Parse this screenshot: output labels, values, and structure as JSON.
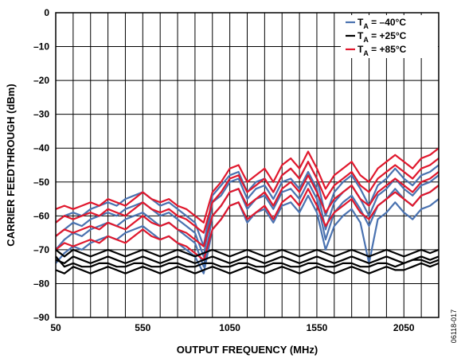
{
  "chart_data": {
    "type": "line",
    "xlabel": "OUTPUT FREQUENCY (MHz)",
    "ylabel": "CARRIER FEEDTHROUGH (dBm)",
    "xlim": [
      50,
      2250
    ],
    "ylim": [
      -90,
      0
    ],
    "x_ticks": [
      50,
      550,
      1050,
      1550,
      2050
    ],
    "x_tick_labels": [
      "50",
      "550",
      "1050",
      "1550",
      "2050"
    ],
    "y_ticks": [
      0,
      -10,
      -20,
      -30,
      -40,
      -50,
      -60,
      -70,
      -80,
      -90
    ],
    "y_tick_labels": [
      "0",
      "–10",
      "–20",
      "–30",
      "–40",
      "–50",
      "–60",
      "–70",
      "–80",
      "–90"
    ],
    "grid": true,
    "grid_x_step": 100,
    "grid_y_step": 10,
    "legend_position": "top-right",
    "figure_id": "06118-017",
    "x": [
      50,
      100,
      150,
      200,
      250,
      300,
      350,
      400,
      450,
      500,
      550,
      600,
      650,
      700,
      750,
      800,
      850,
      900,
      950,
      1000,
      1050,
      1100,
      1150,
      1200,
      1250,
      1300,
      1350,
      1400,
      1450,
      1500,
      1550,
      1600,
      1650,
      1700,
      1750,
      1800,
      1850,
      1900,
      1950,
      2000,
      2050,
      2100,
      2150,
      2200,
      2250
    ],
    "series": [
      {
        "name_prefix": "T",
        "name_sub": "A",
        "name_suffix": " = –40°C",
        "color": "#4a72b0",
        "curves": [
          [
            -66,
            -64,
            -62,
            -63,
            -61,
            -60,
            -59,
            -60,
            -58,
            -57,
            -56,
            -58,
            -60,
            -59,
            -61,
            -63,
            -65,
            -72,
            -56,
            -54,
            -50,
            -49,
            -55,
            -52,
            -51,
            -55,
            -50,
            -49,
            -52,
            -47,
            -52,
            -64,
            -56,
            -53,
            -51,
            -55,
            -60,
            -54,
            -52,
            -49,
            -52,
            -54,
            -51,
            -50,
            -48
          ],
          [
            -70,
            -67,
            -65,
            -66,
            -64,
            -63,
            -62,
            -63,
            -61,
            -60,
            -59,
            -61,
            -63,
            -62,
            -64,
            -66,
            -68,
            -75,
            -60,
            -57,
            -53,
            -52,
            -58,
            -55,
            -54,
            -58,
            -53,
            -52,
            -55,
            -50,
            -55,
            -67,
            -59,
            -56,
            -54,
            -58,
            -63,
            -57,
            -55,
            -52,
            -55,
            -57,
            -54,
            -53,
            -51
          ],
          [
            -74,
            -71,
            -69,
            -70,
            -68,
            -67,
            -66,
            -67,
            -65,
            -64,
            -63,
            -65,
            -67,
            -66,
            -68,
            -70,
            -72,
            -77,
            -64,
            -61,
            -57,
            -56,
            -62,
            -59,
            -58,
            -62,
            -57,
            -56,
            -59,
            -54,
            -59,
            -70,
            -63,
            -60,
            -58,
            -62,
            -74,
            -61,
            -59,
            -56,
            -59,
            -61,
            -58,
            -57,
            -55
          ],
          [
            -62,
            -60,
            -59,
            -60,
            -58,
            -57,
            -56,
            -57,
            -55,
            -54,
            -53,
            -55,
            -57,
            -56,
            -58,
            -60,
            -62,
            -69,
            -54,
            -51,
            -48,
            -47,
            -53,
            -50,
            -49,
            -53,
            -48,
            -46,
            -49,
            -44,
            -49,
            -60,
            -53,
            -50,
            -48,
            -52,
            -57,
            -51,
            -49,
            -46,
            -49,
            -51,
            -48,
            -47,
            -45
          ]
        ]
      },
      {
        "name_prefix": "T",
        "name_sub": "A",
        "name_suffix": " = +25°C",
        "color": "#000000",
        "curves": [
          [
            -73,
            -74,
            -72,
            -73,
            -74,
            -73,
            -72,
            -73,
            -74,
            -73,
            -72,
            -73,
            -74,
            -73,
            -72,
            -73,
            -74,
            -73,
            -72,
            -73,
            -74,
            -73,
            -72,
            -73,
            -74,
            -73,
            -72,
            -73,
            -74,
            -73,
            -72,
            -73,
            -74,
            -73,
            -72,
            -73,
            -74,
            -73,
            -72,
            -73,
            -74,
            -73,
            -72,
            -73,
            -72
          ],
          [
            -70,
            -72,
            -70,
            -71,
            -72,
            -71,
            -70,
            -71,
            -72,
            -71,
            -70,
            -71,
            -72,
            -71,
            -70,
            -71,
            -72,
            -71,
            -70,
            -71,
            -72,
            -71,
            -70,
            -71,
            -72,
            -71,
            -70,
            -71,
            -72,
            -71,
            -70,
            -71,
            -72,
            -71,
            -70,
            -71,
            -72,
            -71,
            -70,
            -71,
            -72,
            -71,
            -70,
            -71,
            -70
          ],
          [
            -76,
            -77,
            -75,
            -76,
            -77,
            -76,
            -75,
            -76,
            -77,
            -76,
            -75,
            -76,
            -77,
            -76,
            -75,
            -76,
            -77,
            -76,
            -75,
            -76,
            -77,
            -76,
            -75,
            -76,
            -77,
            -76,
            -75,
            -76,
            -77,
            -76,
            -75,
            -76,
            -77,
            -76,
            -75,
            -76,
            -77,
            -76,
            -75,
            -76,
            -76,
            -75,
            -74,
            -75,
            -74
          ],
          [
            -72,
            -75,
            -74,
            -75,
            -75,
            -74,
            -74,
            -75,
            -75,
            -74,
            -74,
            -75,
            -75,
            -74,
            -74,
            -75,
            -75,
            -74,
            -74,
            -75,
            -75,
            -74,
            -74,
            -75,
            -75,
            -74,
            -74,
            -75,
            -75,
            -74,
            -74,
            -75,
            -75,
            -74,
            -74,
            -75,
            -75,
            -74,
            -74,
            -75,
            -74,
            -73,
            -73,
            -74,
            -73
          ]
        ]
      },
      {
        "name_prefix": "T",
        "name_sub": "A",
        "name_suffix": " = +85°C",
        "color": "#e0182d",
        "curves": [
          [
            -58,
            -57,
            -58,
            -57,
            -56,
            -57,
            -55,
            -56,
            -57,
            -55,
            -53,
            -55,
            -56,
            -55,
            -57,
            -58,
            -60,
            -62,
            -53,
            -50,
            -46,
            -45,
            -50,
            -48,
            -46,
            -50,
            -45,
            -43,
            -46,
            -41,
            -46,
            -52,
            -48,
            -46,
            -44,
            -48,
            -50,
            -46,
            -44,
            -42,
            -44,
            -46,
            -43,
            -42,
            -40
          ],
          [
            -62,
            -60,
            -61,
            -60,
            -59,
            -60,
            -58,
            -59,
            -60,
            -58,
            -56,
            -58,
            -59,
            -58,
            -60,
            -61,
            -63,
            -65,
            -56,
            -53,
            -49,
            -48,
            -53,
            -51,
            -49,
            -53,
            -48,
            -46,
            -49,
            -44,
            -49,
            -55,
            -51,
            -49,
            -47,
            -51,
            -53,
            -49,
            -47,
            -45,
            -47,
            -49,
            -46,
            -45,
            -43
          ],
          [
            -66,
            -64,
            -65,
            -64,
            -63,
            -64,
            -62,
            -63,
            -64,
            -62,
            -60,
            -62,
            -63,
            -62,
            -64,
            -65,
            -67,
            -69,
            -60,
            -57,
            -53,
            -52,
            -57,
            -55,
            -53,
            -57,
            -52,
            -50,
            -53,
            -48,
            -53,
            -59,
            -55,
            -53,
            -51,
            -55,
            -57,
            -53,
            -51,
            -49,
            -51,
            -53,
            -50,
            -49,
            -47
          ],
          [
            -70,
            -68,
            -69,
            -68,
            -67,
            -68,
            -66,
            -67,
            -68,
            -66,
            -64,
            -66,
            -67,
            -66,
            -68,
            -69,
            -71,
            -73,
            -64,
            -61,
            -57,
            -56,
            -61,
            -59,
            -57,
            -61,
            -56,
            -54,
            -57,
            -52,
            -57,
            -63,
            -59,
            -57,
            -55,
            -59,
            -61,
            -57,
            -55,
            -53,
            -55,
            -57,
            -54,
            -53,
            -51
          ]
        ]
      }
    ]
  }
}
